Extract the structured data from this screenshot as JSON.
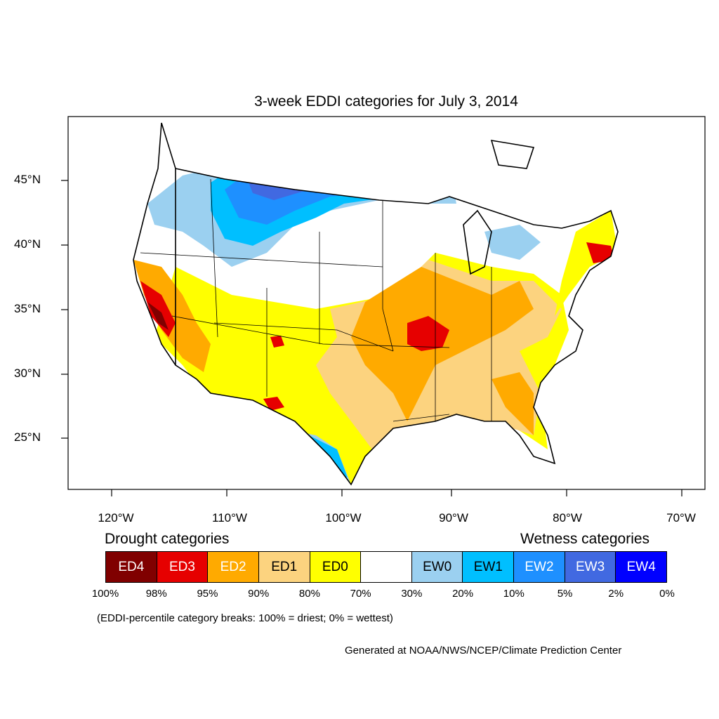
{
  "title": "3-week EDDI categories for July 3, 2014",
  "lat_labels": [
    "45°N",
    "40°N",
    "35°N",
    "30°N",
    "25°N"
  ],
  "lon_labels": [
    "120°W",
    "110°W",
    "100°W",
    "90°W",
    "80°W",
    "70°W"
  ],
  "legend": {
    "drought_header": "Drought categories",
    "wetness_header": "Wetness categories",
    "categories": [
      {
        "label": "ED4",
        "color": "#800000",
        "text_color": "#ffffff"
      },
      {
        "label": "ED3",
        "color": "#e60000",
        "text_color": "#ffffff"
      },
      {
        "label": "ED2",
        "color": "#ffaa00",
        "text_color": "#ffffff"
      },
      {
        "label": "ED1",
        "color": "#fcd37f",
        "text_color": "#000000"
      },
      {
        "label": "ED0",
        "color": "#ffff00",
        "text_color": "#000000"
      },
      {
        "label": "",
        "color": "#ffffff",
        "text_color": "#000000"
      },
      {
        "label": "EW0",
        "color": "#9bd0f0",
        "text_color": "#000000"
      },
      {
        "label": "EW1",
        "color": "#00bfff",
        "text_color": "#000000"
      },
      {
        "label": "EW2",
        "color": "#1e90ff",
        "text_color": "#ffffff"
      },
      {
        "label": "EW3",
        "color": "#4169e1",
        "text_color": "#ffffff"
      },
      {
        "label": "EW4",
        "color": "#0000ff",
        "text_color": "#ffffff"
      }
    ],
    "breaks": [
      "100%",
      "98%",
      "95%",
      "90%",
      "80%",
      "70%",
      "30%",
      "20%",
      "10%",
      "5%",
      "2%",
      "0%"
    ]
  },
  "note": "(EDDI-percentile category breaks: 100% = driest; 0% = wettest)",
  "credit": "Generated at NOAA/NWS/NCEP/Climate Prediction Center"
}
